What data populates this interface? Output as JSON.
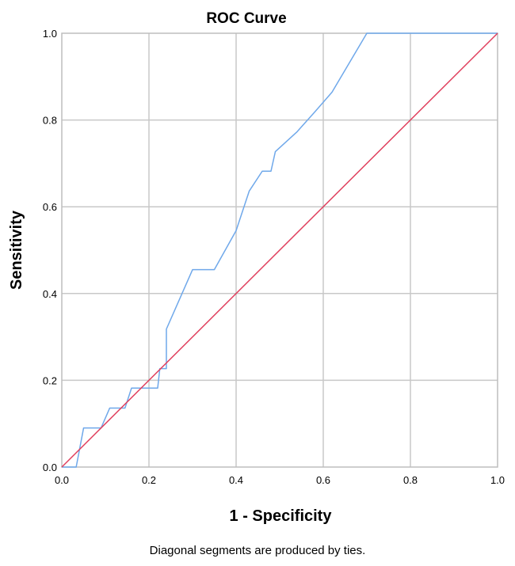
{
  "chart_data": {
    "type": "line",
    "title": "ROC Curve",
    "xlabel": "1 - Specificity",
    "ylabel": "Sensitivity",
    "xlim": [
      0,
      1
    ],
    "ylim": [
      0,
      1
    ],
    "x_ticks": [
      "0.0",
      "0.2",
      "0.4",
      "0.6",
      "0.8",
      "1.0"
    ],
    "y_ticks": [
      "0.0",
      "0.2",
      "0.4",
      "0.6",
      "0.8",
      "1.0"
    ],
    "grid": true,
    "footnote": "Diagonal segments are produced by ties.",
    "series": [
      {
        "color": "#6fa8ea",
        "x": [
          0.0,
          0.033,
          0.05,
          0.09,
          0.11,
          0.145,
          0.16,
          0.22,
          0.225,
          0.24,
          0.24,
          0.3,
          0.35,
          0.4,
          0.43,
          0.46,
          0.48,
          0.49,
          0.54,
          0.58,
          0.62,
          0.7,
          1.0
        ],
        "y": [
          0.0,
          0.0,
          0.09,
          0.09,
          0.136,
          0.136,
          0.182,
          0.182,
          0.227,
          0.227,
          0.318,
          0.455,
          0.455,
          0.545,
          0.636,
          0.682,
          0.682,
          0.727,
          0.773,
          0.818,
          0.864,
          1.0,
          1.0
        ]
      },
      {
        "color": "#e0405e",
        "x": [
          0,
          1
        ],
        "y": [
          0,
          1
        ]
      }
    ]
  }
}
